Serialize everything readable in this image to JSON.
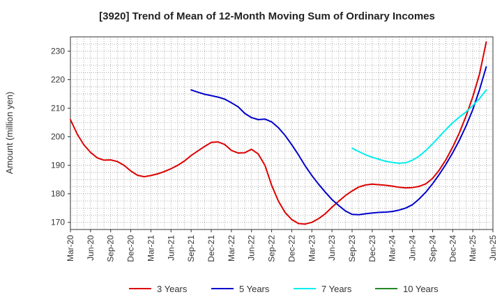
{
  "chart_data": {
    "type": "line",
    "title": "[3920]  Trend of Mean of 12-Month Moving Sum of Ordinary Incomes",
    "xlabel": "",
    "ylabel": "Amount (million yen)",
    "ylim": [
      167.5,
      235
    ],
    "yticks": [
      170,
      180,
      190,
      200,
      210,
      220,
      230
    ],
    "x_tick_labels": [
      "Mar-20",
      "Jun-20",
      "Sep-20",
      "Dec-20",
      "Mar-21",
      "Jun-21",
      "Sep-21",
      "Dec-21",
      "Mar-22",
      "Jun-22",
      "Sep-22",
      "Dec-22",
      "Mar-23",
      "Jun-23",
      "Sep-23",
      "Dec-23",
      "Mar-24",
      "Jun-24",
      "Sep-24",
      "Dec-24",
      "Mar-25",
      "Jun-25"
    ],
    "x_start": "Mar-20",
    "grid": true,
    "legend_position": "bottom",
    "series": [
      {
        "name": "3 Years",
        "color": "#dd0000",
        "start_month_index": 0,
        "values": [
          206.0,
          201.0,
          197.2,
          194.5,
          192.6,
          191.8,
          191.9,
          191.3,
          190.0,
          188.0,
          186.5,
          186.0,
          186.4,
          187.0,
          187.8,
          188.8,
          190.0,
          191.5,
          193.4,
          195.0,
          196.6,
          198.0,
          198.2,
          197.3,
          195.2,
          194.3,
          194.4,
          195.6,
          194.0,
          190.0,
          183.0,
          177.5,
          173.5,
          171.0,
          169.6,
          169.4,
          170.0,
          171.3,
          173.0,
          175.3,
          177.4,
          179.4,
          181.0,
          182.4,
          183.1,
          183.4,
          183.2,
          183.0,
          182.7,
          182.3,
          182.1,
          182.2,
          182.6,
          183.5,
          185.4,
          188.3,
          192.0,
          196.4,
          201.4,
          207.3,
          214.0,
          222.0,
          233.2
        ]
      },
      {
        "name": "5 Years",
        "color": "#0000cc",
        "start_month_index": 18,
        "values": [
          216.4,
          215.6,
          214.9,
          214.4,
          213.9,
          213.2,
          211.9,
          210.5,
          208.2,
          206.7,
          206.0,
          206.2,
          205.2,
          203.2,
          200.5,
          197.2,
          193.7,
          189.8,
          186.4,
          183.4,
          180.6,
          178.0,
          175.9,
          174.0,
          172.8,
          172.7,
          173.0,
          173.3,
          173.5,
          173.6,
          173.8,
          174.3,
          175.0,
          176.2,
          178.2,
          180.6,
          183.5,
          186.8,
          190.4,
          194.4,
          198.8,
          203.8,
          209.5,
          216.5,
          224.5
        ]
      },
      {
        "name": "7 Years",
        "color": "#00eeee",
        "start_month_index": 42,
        "values": [
          196.0,
          194.8,
          193.7,
          192.8,
          192.1,
          191.4,
          191.0,
          190.7,
          190.9,
          191.8,
          193.2,
          195.2,
          197.5,
          200.0,
          202.6,
          204.9,
          206.9,
          208.7,
          210.9,
          213.4,
          216.4
        ]
      },
      {
        "name": "10 Years",
        "color": "#228822",
        "start_month_index": 0,
        "values": []
      }
    ]
  }
}
